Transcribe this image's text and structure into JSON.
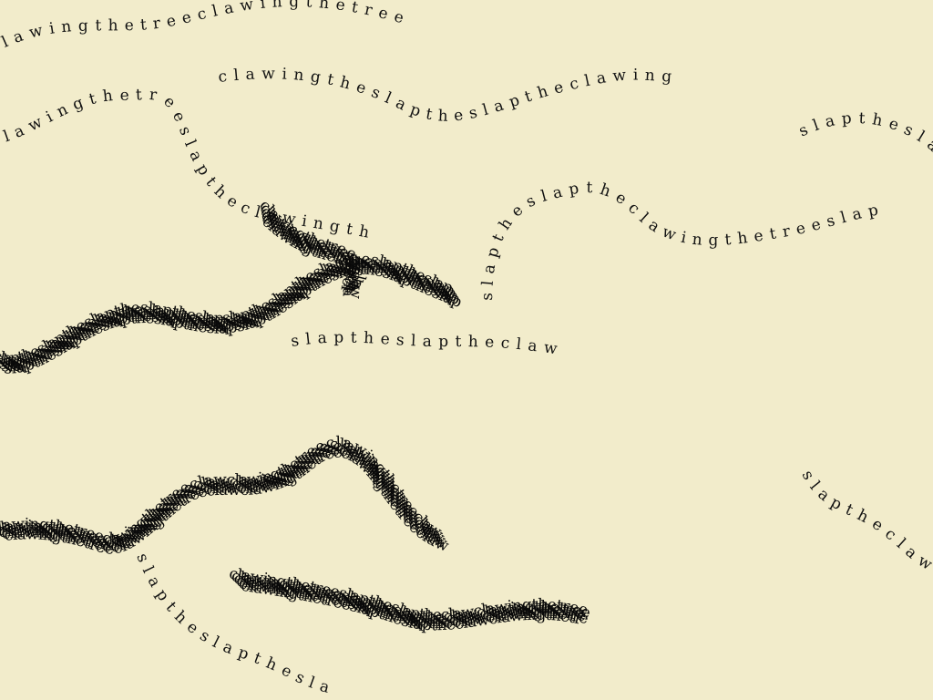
{
  "background_color": "#f2eccb",
  "ink_color": "#111111",
  "words": [
    "claw",
    "ing",
    "the",
    "tree",
    "slap"
  ],
  "strands": [
    {
      "text": "c l a w i n g t h e t r e e c l a w i n g t h e t r e e",
      "density": "light"
    },
    {
      "text": "s l a p t h e s l a p t h e s l a p t h e s l a p t h e s l a p",
      "density": "dense"
    },
    {
      "text": "c l a w i n g t h e t r e e s l a p t h e c l a w i n g t h e",
      "density": "light"
    },
    {
      "text": "s l a p t h e s l a p t h e c l a w i n g t h e t r e e s l a p",
      "density": "light"
    },
    {
      "text": "c l a w i n g t h e t r e e c l a w i n g t h e t r e e c l a w",
      "density": "dense"
    },
    {
      "text": "s l a p t h e s l a p t h e s l a p t h e s l a p t h e s l a p t h e",
      "density": "light"
    },
    {
      "text": "c l a w i n g t h e t r e e s l a p t h e s l a p t h e c l a w",
      "density": "dense"
    },
    {
      "text": "s l a p t h e c l a w i n g t h e t r e e s l a p t h e s l a p",
      "density": "light"
    },
    {
      "text": "c l a w i n g t h e t r e e c l a w i n g t h e t r e e s l a p",
      "density": "dense"
    },
    {
      "text": "s l a p t h e s l a p t h e c l a w i n g t h e t r e e s l a p",
      "density": "light"
    },
    {
      "text": "c l a w i n g t h e s l a p t h e s l a p t h e c l a w i n g",
      "density": "light"
    },
    {
      "text": "s l a p t h e s l a p t h e s l a p t h e s l a p t h e s l a p",
      "density": "light"
    }
  ]
}
